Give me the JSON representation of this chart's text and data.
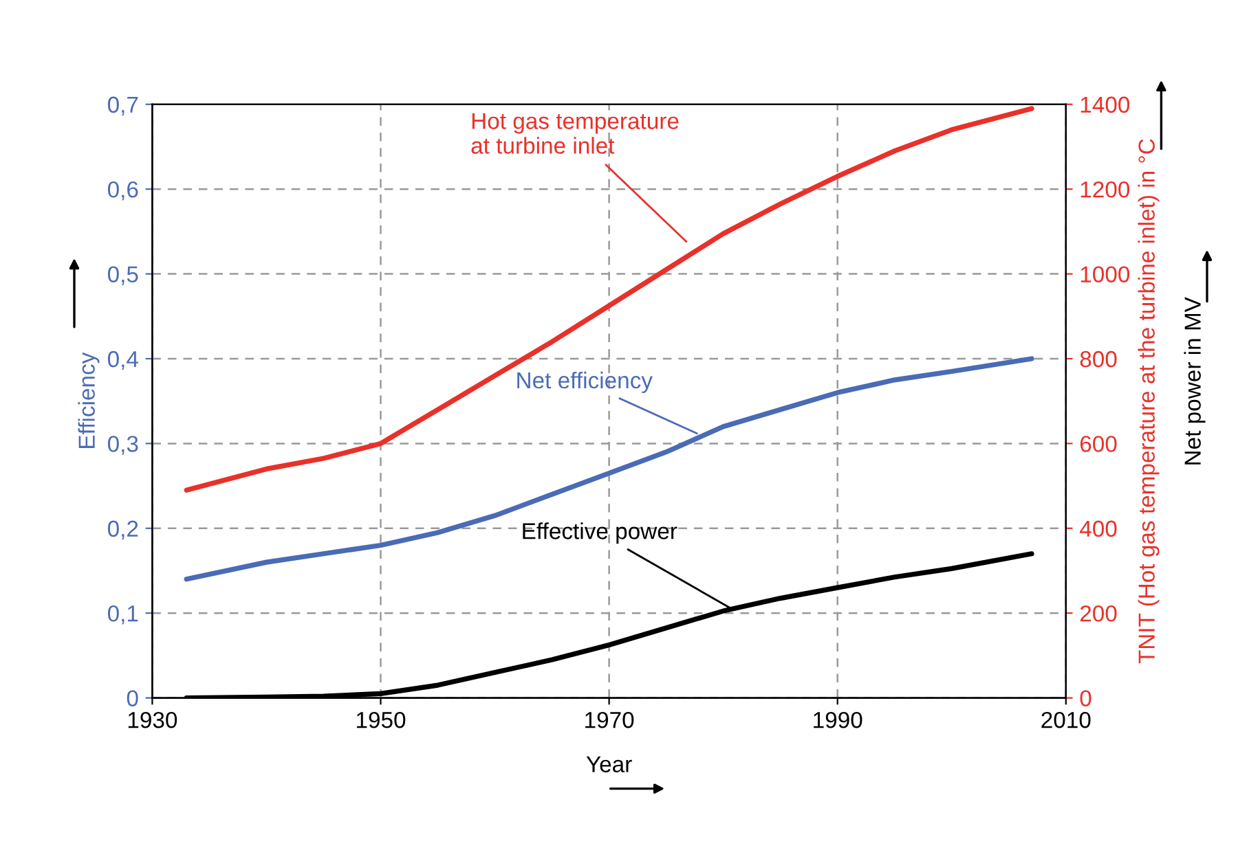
{
  "chart_data": {
    "type": "line",
    "xlabel": "Year",
    "ylabel": "Efficiency",
    "y2label": "TNIT (Hot gas temperature at the turbine inlet) in °C",
    "y3label": "Net power in MV",
    "x": [
      1933,
      1940,
      1945,
      1950,
      1955,
      1960,
      1965,
      1970,
      1975,
      1980,
      1985,
      1990,
      1995,
      2000,
      2007
    ],
    "series": [
      {
        "color": "#e8312a",
        "axis": "y2",
        "values": [
          490,
          540,
          565,
          600,
          680,
          760,
          840,
          925,
          1010,
          1095,
          1165,
          1230,
          1290,
          1340,
          1390
        ]
      },
      {
        "color": "#4a6bb5",
        "axis": "y",
        "values": [
          0.14,
          0.16,
          0.17,
          0.18,
          0.195,
          0.215,
          0.24,
          0.265,
          0.29,
          0.32,
          0.34,
          0.36,
          0.375,
          0.385,
          0.4
        ]
      },
      {
        "color": "#000000",
        "axis": "y2",
        "values": [
          0,
          2,
          4,
          10,
          30,
          60,
          90,
          125,
          165,
          205,
          235,
          260,
          285,
          305,
          340
        ]
      }
    ],
    "annotations": [
      {
        "text": "Hot gas temperature\nat turbine inlet",
        "x": 1977,
        "y": 0.535
      },
      {
        "text": "Net efficiency",
        "x": 1978,
        "y": 0.31
      },
      {
        "text": "Effective power",
        "x": 1981,
        "y": 0.103
      }
    ],
    "xlim": [
      1930,
      2010
    ],
    "xticks": [
      1930,
      1950,
      1970,
      1990,
      2010
    ],
    "ylim": [
      0,
      0.7
    ],
    "yticks": [
      0,
      {
        "value": 0.1,
        "label": "0,1"
      },
      {
        "value": 0.2,
        "label": "0,2"
      },
      {
        "value": 0.3,
        "label": "0,3"
      },
      {
        "value": 0.4,
        "label": "0,4"
      },
      {
        "value": 0.5,
        "label": "0,5"
      },
      {
        "value": 0.6,
        "label": "0,6"
      },
      {
        "value": 0.7,
        "label": "0,7"
      }
    ],
    "y2lim": [
      0,
      1400
    ],
    "y2ticks": [
      0,
      200,
      400,
      600,
      800,
      1000,
      1200,
      1400
    ],
    "grid": true,
    "legend": false,
    "line_style": "solid",
    "marker": "none"
  }
}
